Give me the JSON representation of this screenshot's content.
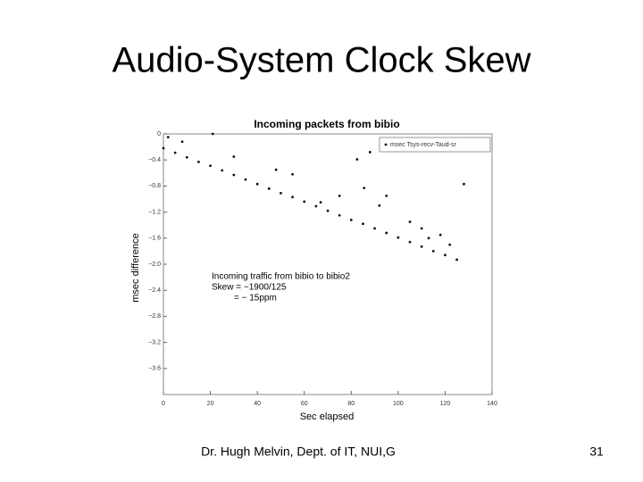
{
  "slide": {
    "title": "Audio-System Clock Skew",
    "footer": "Dr. Hugh Melvin, Dept. of IT, NUI,G",
    "page_number": 31
  },
  "chart_data": {
    "type": "scatter",
    "title": "Incoming packets from bibio",
    "x_label": "Sec elapsed",
    "y_label": "msec difference",
    "annotations": [
      "Incoming traffic from bibio to bibio2",
      "Skew = −1900/125",
      "= − 15ppm"
    ],
    "legend": "upper right",
    "series": [
      {
        "name": "msec Tsys-recv-Taud-sr",
        "color": "#111111",
        "x": [
          0,
          5,
          10,
          15,
          20,
          25,
          30,
          35,
          40,
          45,
          50,
          55,
          60,
          65,
          70,
          75,
          80,
          85,
          90,
          95,
          100,
          105,
          110,
          115,
          120,
          125,
          2,
          8,
          21,
          30,
          48,
          55,
          67,
          75,
          82.5,
          85.5,
          88,
          95,
          92,
          105,
          110,
          113,
          118,
          122,
          128
        ],
        "values": [
          -0.22,
          -0.29,
          -0.36,
          -0.43,
          -0.49,
          -0.56,
          -0.63,
          -0.7,
          -0.77,
          -0.84,
          -0.91,
          -0.97,
          -1.04,
          -1.11,
          -1.18,
          -1.25,
          -1.32,
          -1.38,
          -1.45,
          -1.52,
          -1.59,
          -1.66,
          -1.73,
          -1.8,
          -1.86,
          -1.93,
          -0.05,
          -0.12,
          0.0,
          -0.35,
          -0.55,
          -0.62,
          -1.05,
          -0.95,
          -0.39,
          -0.83,
          -0.28,
          -0.95,
          -1.1,
          -1.35,
          -1.45,
          -1.6,
          -1.55,
          -1.7,
          -0.77
        ]
      }
    ],
    "xlim": [
      0,
      140
    ],
    "xticks": [
      0,
      20,
      40,
      60,
      80,
      100,
      120,
      140
    ],
    "ylim": [
      -4,
      0
    ],
    "yticks": [
      0,
      {
        "value": -0.4,
        "label": "−0.4"
      },
      {
        "value": -0.8,
        "label": "−0.8"
      },
      {
        "value": -1.2,
        "label": "−1.2"
      },
      {
        "value": -1.6,
        "label": "−1.6"
      },
      {
        "value": -2.0,
        "label": "−2.0"
      },
      {
        "value": -2.4,
        "label": "−2.4"
      },
      {
        "value": -2.8,
        "label": "−2.8"
      },
      {
        "value": -3.2,
        "label": "−3.2"
      },
      {
        "value": -3.6,
        "label": "−3.6"
      }
    ],
    "grid": false
  }
}
